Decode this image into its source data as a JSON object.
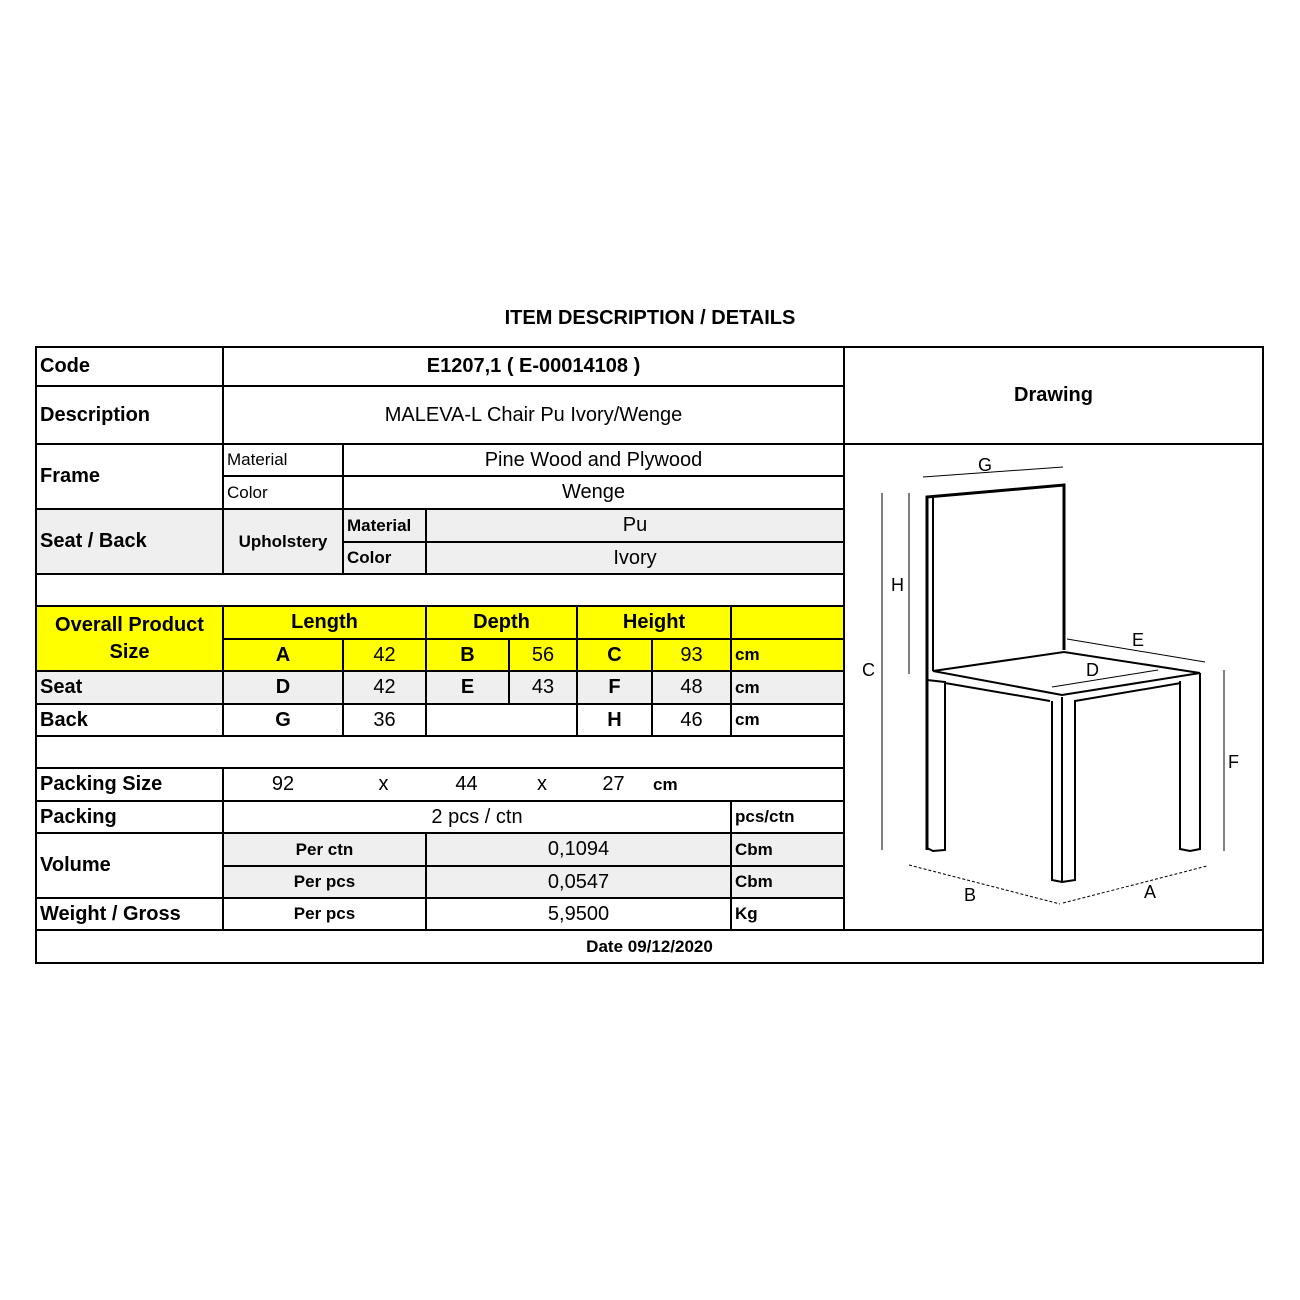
{
  "title": "ITEM DESCRIPTION / DETAILS",
  "code": {
    "label": "Code",
    "value": "E1207,1  ( E-00014108 )"
  },
  "description": {
    "label": "Description",
    "value": "MALEVA-L Chair Pu Ivory/Wenge"
  },
  "drawing": {
    "label": "Drawing",
    "dimension_labels": {
      "A": "A",
      "B": "B",
      "C": "C",
      "D": "D",
      "E": "E",
      "F": "F",
      "G": "G",
      "H": "H"
    }
  },
  "frame": {
    "label": "Frame",
    "material_label": "Material",
    "material": "Pine Wood and Plywood",
    "color_label": "Color",
    "color": "Wenge"
  },
  "seat_back": {
    "label": "Seat / Back",
    "sub_label": "Upholstery",
    "material_label": "Material",
    "material": "Pu",
    "color_label": "Color",
    "color": "Ivory"
  },
  "overall": {
    "label": "Overall Product Size",
    "length_label": "Length",
    "depth_label": "Depth",
    "height_label": "Height",
    "a": "A",
    "a_val": "42",
    "b": "B",
    "b_val": "56",
    "c": "C",
    "c_val": "93",
    "unit": "cm"
  },
  "seat": {
    "label": "Seat",
    "d": "D",
    "d_val": "42",
    "e": "E",
    "e_val": "43",
    "f": "F",
    "f_val": "48",
    "unit": "cm"
  },
  "back": {
    "label": "Back",
    "g": "G",
    "g_val": "36",
    "h": "H",
    "h_val": "46",
    "unit": "cm"
  },
  "packing_size": {
    "label": "Packing Size",
    "l": "92",
    "x1": "x",
    "w": "44",
    "x2": "x",
    "h": "27",
    "unit": "cm"
  },
  "packing": {
    "label": "Packing",
    "value": "2 pcs / ctn",
    "unit": "pcs/ctn"
  },
  "volume": {
    "label": "Volume",
    "per_ctn_label": "Per ctn",
    "per_ctn": "0,1094",
    "per_pcs_label": "Per pcs",
    "per_pcs": "0,0547",
    "unit": "Cbm"
  },
  "weight": {
    "label": "Weight / Gross",
    "per_pcs_label": "Per pcs",
    "value": "5,9500",
    "unit": "Kg"
  },
  "date": "Date 09/12/2020",
  "colors": {
    "highlight": "#ffff00",
    "shaded": "#efefef",
    "border": "#000000"
  }
}
